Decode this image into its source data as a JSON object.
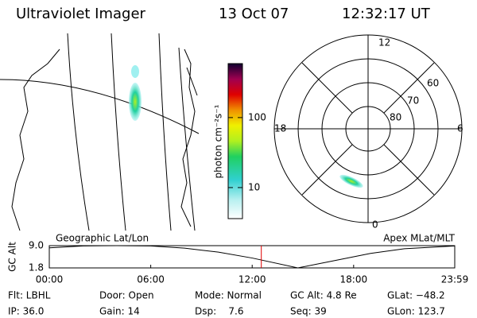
{
  "header": {
    "title": "Ultraviolet Imager",
    "date": "13 Oct 07",
    "time": "12:32:17 UT"
  },
  "colorbar": {
    "label": "photon cm⁻²s⁻¹",
    "range": [
      3.6,
      590
    ],
    "log": true,
    "ticks": [
      100,
      10
    ]
  },
  "polar": {
    "mlt_labels": [
      "12",
      "18",
      "6",
      "0"
    ],
    "lat_labels": [
      "60",
      "70",
      "80"
    ]
  },
  "altitude": {
    "ylabel": "GC Alt",
    "left_label": "Geographic Lat/Lon",
    "right_label": "Apex MLat/MLT",
    "x": [
      0,
      2,
      4,
      6,
      8,
      10,
      12,
      14.7,
      17,
      19,
      21,
      23.98
    ],
    "values": [
      8.3,
      8.9,
      9.0,
      8.9,
      8.2,
      6.9,
      5.0,
      1.8,
      4.3,
      6.5,
      8.0,
      8.9
    ],
    "ylim": [
      1.8,
      9.0
    ],
    "yticks": [
      {
        "value": 9.0,
        "label": "9.0"
      },
      {
        "value": 1.8,
        "label": "1.8"
      }
    ],
    "xlim": [
      0,
      23.98
    ],
    "xticks": [
      {
        "value": 0,
        "label": "00:00"
      },
      {
        "value": 6,
        "label": "06:00"
      },
      {
        "value": 12,
        "label": "12:00"
      },
      {
        "value": 18,
        "label": "18:00"
      },
      {
        "value": 23.98,
        "label": "23:59"
      }
    ],
    "marker_x": 12.54,
    "marker_color": "#e00000"
  },
  "info": {
    "rows": [
      [
        "Flt: LBHL",
        "Door: Open",
        "Mode: Normal",
        "GC Alt: 4.8 Re",
        "GLat: −48.2"
      ],
      [
        "IP: 36.0",
        "Gain: 14",
        "Dsp:    7.6",
        "Seq: 39",
        "GLon: 123.7"
      ]
    ]
  }
}
